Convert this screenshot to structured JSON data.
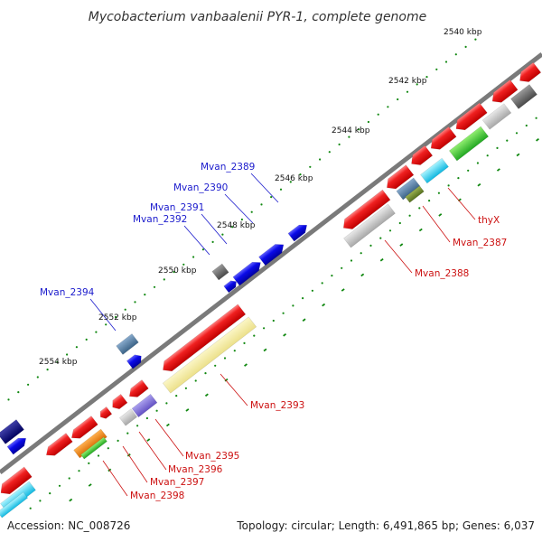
{
  "title": "Mycobacterium vanbaalenii PYR-1, complete genome",
  "footer": {
    "accession": "Accession: NC_008726",
    "summary": "Topology: circular; Length: 6,491,865 bp; Genes: 6,037"
  },
  "colors": {
    "backbone": "#7a7a7a",
    "tick": "#118811",
    "forward_label": "#1a1acc",
    "reverse_label": "#cc1111"
  },
  "kbp_ticks": [
    {
      "label": "2540 kbp"
    },
    {
      "label": "2542 kbp"
    },
    {
      "label": "2544 kbp"
    },
    {
      "label": "2546 kbp"
    },
    {
      "label": "2548 kbp"
    },
    {
      "label": "2550 kbp"
    },
    {
      "label": "2552 kbp"
    },
    {
      "label": "2554 kbp"
    }
  ],
  "forward_gene_labels": [
    {
      "name": "Mvan_2389"
    },
    {
      "name": "Mvan_2390"
    },
    {
      "name": "Mvan_2391"
    },
    {
      "name": "Mvan_2392"
    },
    {
      "name": "Mvan_2394"
    }
  ],
  "reverse_gene_labels": [
    {
      "name": "thyX"
    },
    {
      "name": "Mvan_2387"
    },
    {
      "name": "Mvan_2388"
    },
    {
      "name": "Mvan_2393"
    },
    {
      "name": "Mvan_2395"
    },
    {
      "name": "Mvan_2396"
    },
    {
      "name": "Mvan_2397"
    },
    {
      "name": "Mvan_2398"
    }
  ]
}
